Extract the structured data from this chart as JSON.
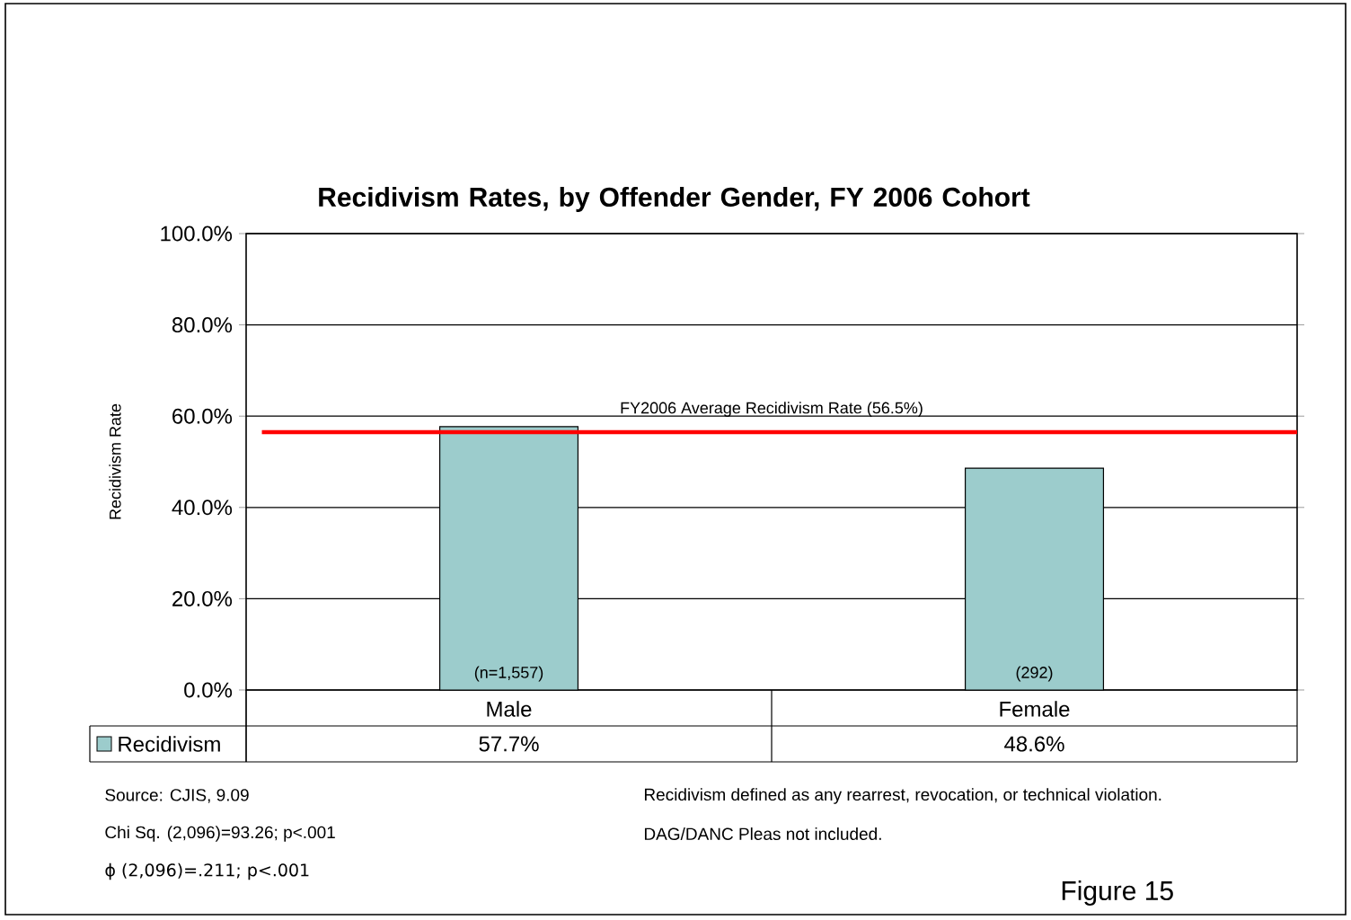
{
  "chart_data": {
    "type": "bar",
    "title": "Recidivism Rates, by Offender Gender, FY 2006 Cohort",
    "ylabel": "Recidivism Rate",
    "categories": [
      "Male",
      "Female"
    ],
    "series": [
      {
        "name": "Recidivism",
        "color": "#9ccccc",
        "values": [
          57.7,
          48.6
        ],
        "value_labels": [
          "57.7%",
          "48.6%"
        ]
      }
    ],
    "ylim": [
      0,
      100
    ],
    "yticks": [
      {
        "value": 0,
        "label": "0.0%"
      },
      {
        "value": 20,
        "label": "20.0%"
      },
      {
        "value": 40,
        "label": "40.0%"
      },
      {
        "value": 60,
        "label": "60.0%"
      },
      {
        "value": 80,
        "label": "80.0%"
      },
      {
        "value": 100,
        "label": "100.0%"
      }
    ],
    "grid": "y",
    "legend": "bottom left",
    "ref_lines": [
      {
        "axis": "y",
        "value": 56.5,
        "label": "FY2006 Average Recidivism Rate (56.5%)",
        "color": "#ff0000"
      }
    ],
    "annotations": [
      "(n=1,557)",
      "(292)",
      "Source: CJIS, 9.09",
      "Chi Sq. (2,096)=93.26; p<.001",
      "ϕ (2,096)=.211; p<.001",
      "Recidivism defined as any rearrest, revocation, or technical violation.",
      "DAG/DANC Pleas not included.",
      "Figure 15"
    ]
  }
}
